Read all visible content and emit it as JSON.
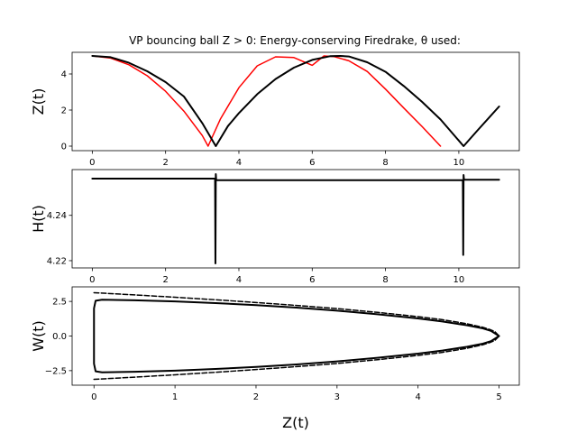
{
  "chart_data": [
    {
      "type": "line",
      "title": "VP bouncing ball Z > 0: Energy-conserving Firedrake, θ used:",
      "ylabel": "Z(t)",
      "xlabel": "",
      "xlim": [
        -0.55,
        11.65
      ],
      "ylim": [
        -0.25,
        5.2
      ],
      "xticks": [
        0,
        2,
        4,
        6,
        8,
        10
      ],
      "yticks": [
        0,
        2,
        4
      ],
      "series": [
        {
          "color": "#ff0000",
          "style": "solid",
          "x": [
            0,
            0.5,
            1.0,
            1.5,
            2.0,
            2.5,
            3.0,
            3.16,
            3.5,
            4.0,
            4.5,
            5.0,
            5.5,
            6.0,
            6.32,
            6.6,
            7.0,
            7.5,
            8.0,
            8.5,
            9.0,
            9.5
          ],
          "y": [
            5.0,
            4.88,
            4.51,
            3.9,
            3.04,
            1.94,
            0.59,
            0.0,
            1.52,
            3.24,
            4.45,
            4.95,
            4.91,
            4.48,
            5.0,
            4.96,
            4.73,
            4.14,
            3.16,
            2.11,
            1.08,
            0.0
          ]
        },
        {
          "color": "#000000",
          "style": "solid",
          "x": [
            0,
            0.5,
            1.0,
            1.5,
            2.0,
            2.5,
            3.0,
            3.37,
            3.7,
            4.0,
            4.5,
            5.0,
            5.5,
            6.0,
            6.5,
            6.77,
            7.0,
            7.5,
            8.0,
            8.5,
            9.0,
            9.5,
            10.13,
            10.5,
            11.1
          ],
          "y": [
            5.0,
            4.93,
            4.62,
            4.15,
            3.55,
            2.75,
            1.28,
            0.0,
            1.11,
            1.83,
            2.88,
            3.72,
            4.35,
            4.78,
            4.99,
            5.0,
            4.97,
            4.65,
            4.12,
            3.33,
            2.45,
            1.48,
            0.0,
            0.85,
            2.2
          ]
        }
      ]
    },
    {
      "type": "line",
      "ylabel": "H(t)",
      "xlabel": "",
      "xlim": [
        -0.55,
        11.65
      ],
      "ylim": [
        4.2168,
        4.2602
      ],
      "xticks": [
        0,
        2,
        4,
        6,
        8,
        10
      ],
      "yticks": [
        4.22,
        4.24
      ],
      "series": [
        {
          "color": "#000000",
          "style": "solid",
          "x": [
            0,
            3.35,
            3.36,
            3.37,
            3.38,
            3.39,
            10.11,
            10.12,
            10.13,
            10.14,
            10.15,
            11.1
          ],
          "y": [
            4.2562,
            4.2562,
            4.2188,
            4.2582,
            4.2555,
            4.2555,
            4.2555,
            4.2225,
            4.2578,
            4.2558,
            4.2557,
            4.2557
          ]
        }
      ]
    },
    {
      "type": "line",
      "ylabel": "W(t)",
      "xlabel": "Z(t)",
      "xlim": [
        -0.27,
        5.25
      ],
      "ylim": [
        -3.55,
        3.55
      ],
      "xticks": [
        0,
        1,
        2,
        3,
        4,
        5
      ],
      "xtick_labels": [
        "0",
        "1",
        "2",
        "3",
        "4",
        "5"
      ],
      "yticks": [
        -2.5,
        0.0,
        2.5
      ],
      "ytick_labels": [
        "−2.5",
        "0.0",
        "2.5"
      ],
      "series": [
        {
          "color": "#000000",
          "style": "solid",
          "x": [
            5.0,
            4.9,
            4.8,
            4.6,
            4.3,
            4.0,
            3.5,
            3.0,
            2.5,
            2.0,
            1.5,
            1.0,
            0.5,
            0.1,
            0.02,
            0.0,
            0.0,
            0.02,
            0.1,
            0.5,
            1.0,
            1.5,
            2.0,
            2.5,
            3.0,
            3.5,
            4.0,
            4.3,
            4.6,
            4.8,
            4.9,
            5.0
          ],
          "y": [
            0.0,
            0.37,
            0.55,
            0.78,
            1.05,
            1.27,
            1.57,
            1.83,
            2.05,
            2.23,
            2.38,
            2.5,
            2.58,
            2.62,
            2.55,
            2.0,
            -2.0,
            -2.55,
            -2.62,
            -2.58,
            -2.5,
            -2.38,
            -2.23,
            -2.05,
            -1.83,
            -1.57,
            -1.27,
            -1.05,
            -0.78,
            -0.55,
            -0.37,
            0.0
          ]
        },
        {
          "color": "#000000",
          "style": "dashed",
          "x": [
            0.0,
            0.5,
            1.0,
            1.5,
            2.0,
            2.5,
            3.0,
            3.5,
            4.0,
            4.3,
            4.6,
            4.8,
            4.9,
            4.95,
            5.0
          ],
          "y": [
            3.13,
            2.97,
            2.8,
            2.62,
            2.42,
            2.21,
            1.98,
            1.71,
            1.4,
            1.18,
            0.89,
            0.63,
            0.44,
            0.31,
            0.0
          ]
        },
        {
          "color": "#000000",
          "style": "dashed",
          "x": [
            0.0,
            0.5,
            1.0,
            1.5,
            2.0,
            2.5,
            3.0,
            3.5,
            4.0,
            4.3,
            4.6,
            4.8,
            4.9,
            4.95,
            5.0
          ],
          "y": [
            -3.13,
            -2.97,
            -2.8,
            -2.62,
            -2.42,
            -2.21,
            -1.98,
            -1.71,
            -1.4,
            -1.18,
            -0.89,
            -0.63,
            -0.44,
            -0.31,
            0.0
          ]
        }
      ]
    }
  ]
}
